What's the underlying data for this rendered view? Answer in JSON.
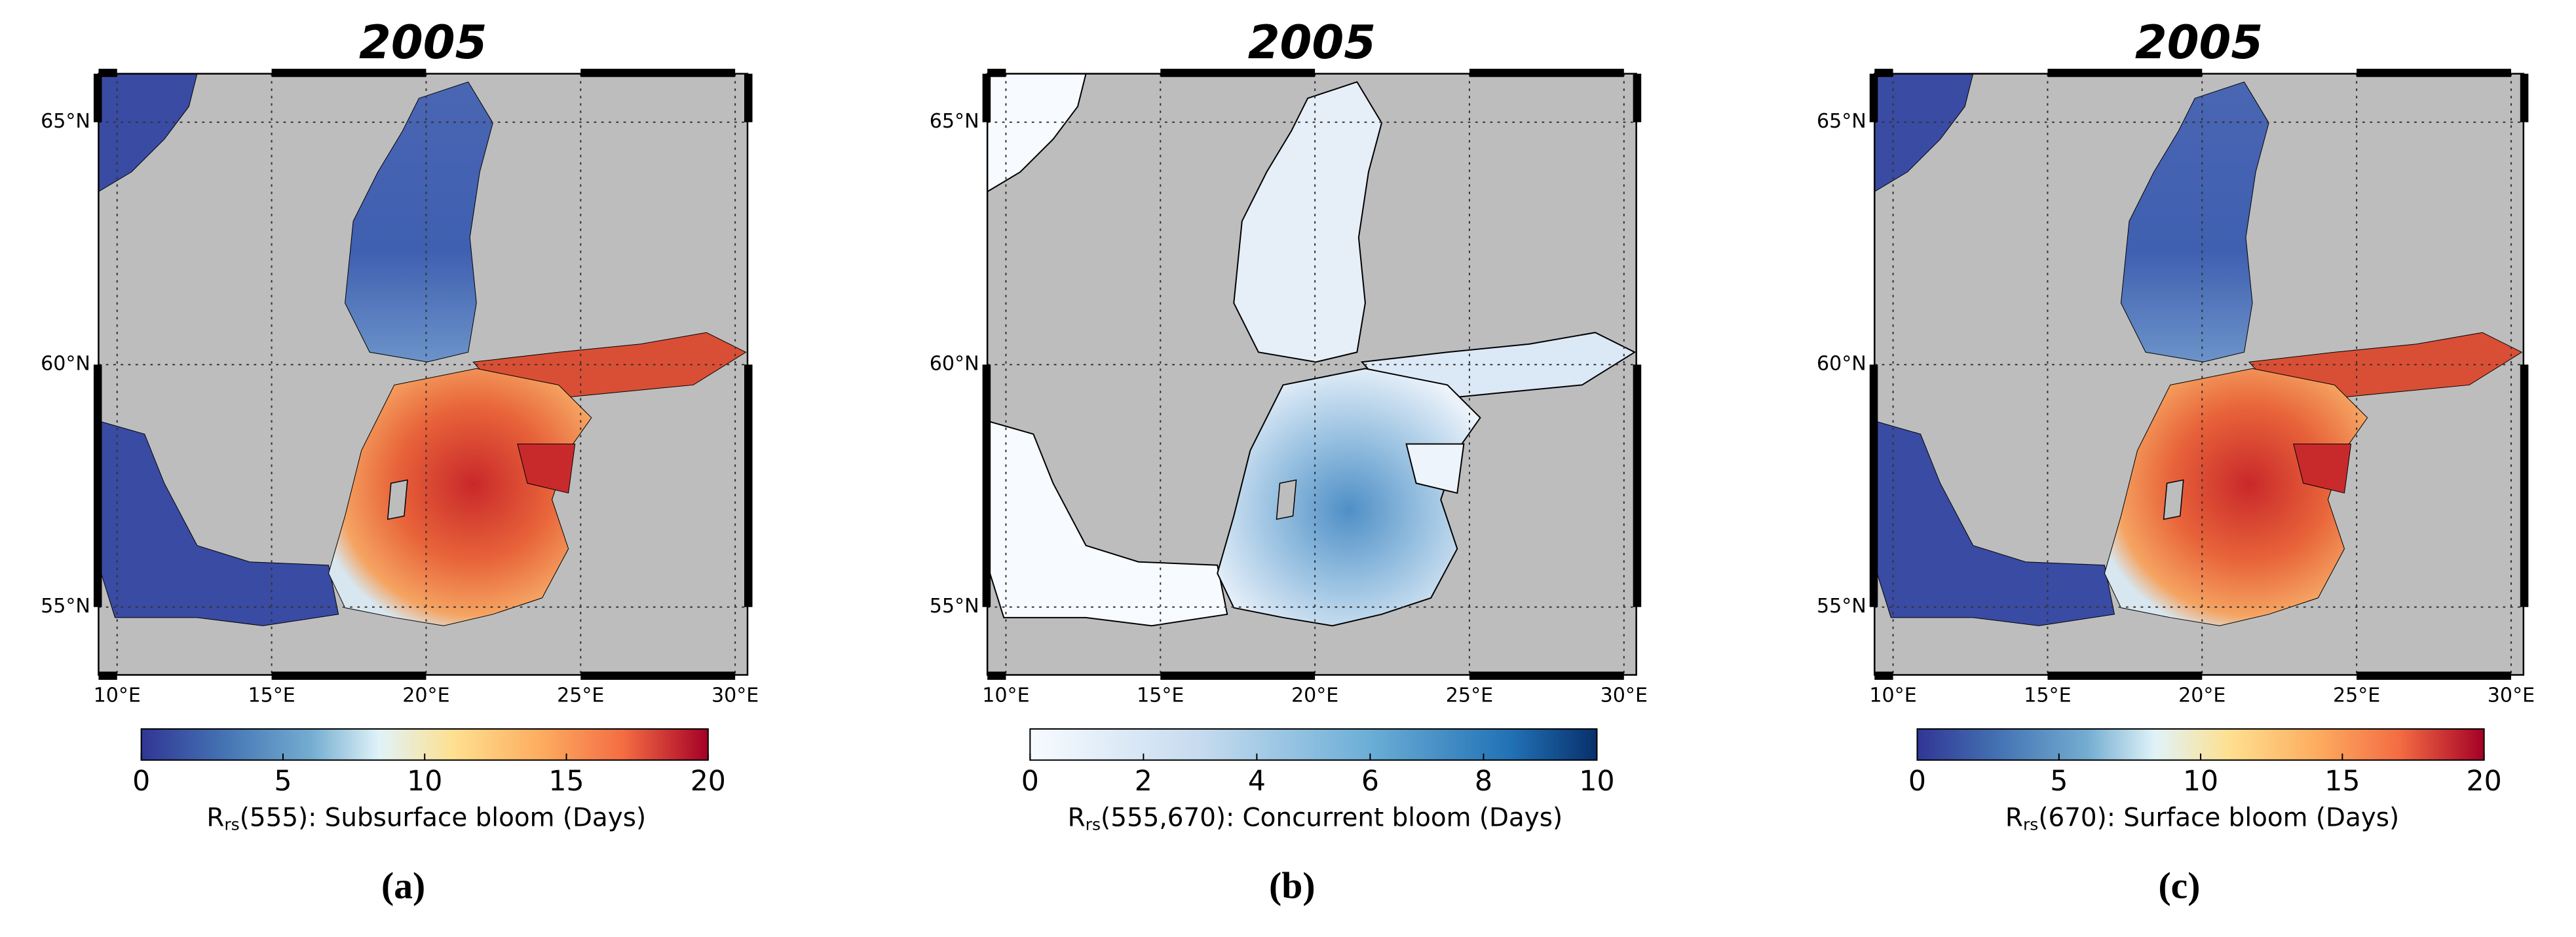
{
  "panels": [
    {
      "title": "2005",
      "label": "(a)",
      "map": {
        "xlim": [
          9.4,
          30.4
        ],
        "ylim": [
          53.6,
          66
        ],
        "xticks": [
          {
            "value": 10,
            "label": "10°E"
          },
          {
            "value": 15,
            "label": "15°E"
          },
          {
            "value": 20,
            "label": "20°E"
          },
          {
            "value": 25,
            "label": "25°E"
          },
          {
            "value": 30,
            "label": "30°E"
          }
        ],
        "yticks": [
          {
            "value": 55,
            "label": "55°N"
          },
          {
            "value": 60,
            "label": "60°N"
          },
          {
            "value": 65,
            "label": "65°N"
          }
        ]
      },
      "colorbar": {
        "colormap": "RdYlBu_r",
        "ticks": [
          0,
          5,
          10,
          15,
          20
        ],
        "label_symbol": "R",
        "label_subscript": "rs",
        "label_text": "(555): Subsurface bloom (Days)"
      }
    },
    {
      "title": "2005",
      "label": "(b)",
      "map": {
        "xlim": [
          9.4,
          30.4
        ],
        "ylim": [
          53.6,
          66
        ],
        "xticks": [
          {
            "value": 10,
            "label": "10°E"
          },
          {
            "value": 15,
            "label": "15°E"
          },
          {
            "value": 20,
            "label": "20°E"
          },
          {
            "value": 25,
            "label": "25°E"
          },
          {
            "value": 30,
            "label": "30°E"
          }
        ],
        "yticks": [
          {
            "value": 55,
            "label": "55°N"
          },
          {
            "value": 60,
            "label": "60°N"
          },
          {
            "value": 65,
            "label": "65°N"
          }
        ]
      },
      "colorbar": {
        "colormap": "Blues",
        "ticks": [
          0,
          2,
          4,
          6,
          8,
          10
        ],
        "label_symbol": "R",
        "label_subscript": "rs",
        "label_text": "(555,670): Concurrent bloom (Days)"
      }
    },
    {
      "title": "2005",
      "label": "(c)",
      "map": {
        "xlim": [
          9.4,
          30.4
        ],
        "ylim": [
          53.6,
          66
        ],
        "xticks": [
          {
            "value": 10,
            "label": "10°E"
          },
          {
            "value": 15,
            "label": "15°E"
          },
          {
            "value": 20,
            "label": "20°E"
          },
          {
            "value": 25,
            "label": "25°E"
          },
          {
            "value": 30,
            "label": "30°E"
          }
        ],
        "yticks": [
          {
            "value": 55,
            "label": "55°N"
          },
          {
            "value": 60,
            "label": "60°N"
          },
          {
            "value": 65,
            "label": "65°N"
          }
        ]
      },
      "colorbar": {
        "colormap": "RdYlBu_r",
        "ticks": [
          0,
          5,
          10,
          15,
          20
        ],
        "label_symbol": "R",
        "label_subscript": "rs",
        "label_text": "(670): Surface bloom (Days)"
      }
    }
  ]
}
